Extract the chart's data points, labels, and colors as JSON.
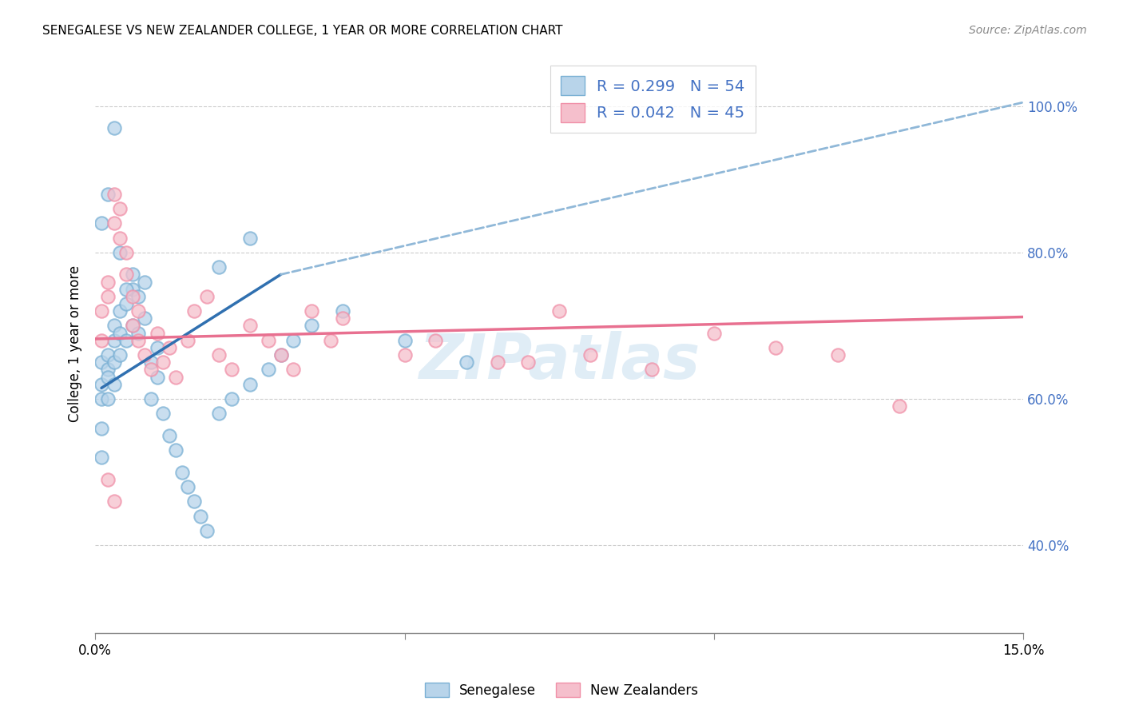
{
  "title": "SENEGALESE VS NEW ZEALANDER COLLEGE, 1 YEAR OR MORE CORRELATION CHART",
  "source": "Source: ZipAtlas.com",
  "ylabel": "College, 1 year or more",
  "right_yticks": [
    0.4,
    0.6,
    0.8,
    1.0
  ],
  "right_yticklabels": [
    "40.0%",
    "60.0%",
    "80.0%",
    "100.0%"
  ],
  "legend_label1": "R = 0.299   N = 54",
  "legend_label2": "R = 0.042   N = 45",
  "blue_fill": "#b8d4ea",
  "blue_edge": "#7ab0d4",
  "pink_fill": "#f5bfcc",
  "pink_edge": "#f090a8",
  "blue_line_color": "#3070b0",
  "blue_dash_color": "#90b8d8",
  "pink_line_color": "#e87090",
  "xlim": [
    0.0,
    0.15
  ],
  "ylim": [
    0.28,
    1.07
  ],
  "watermark": "ZIPatlas",
  "sen_x": [
    0.001,
    0.001,
    0.001,
    0.001,
    0.001,
    0.002,
    0.002,
    0.002,
    0.002,
    0.003,
    0.003,
    0.003,
    0.003,
    0.004,
    0.004,
    0.004,
    0.005,
    0.005,
    0.006,
    0.006,
    0.007,
    0.007,
    0.008,
    0.008,
    0.009,
    0.009,
    0.01,
    0.01,
    0.011,
    0.012,
    0.013,
    0.014,
    0.015,
    0.016,
    0.017,
    0.018,
    0.02,
    0.022,
    0.025,
    0.028,
    0.03,
    0.032,
    0.035,
    0.02,
    0.025,
    0.04,
    0.05,
    0.06,
    0.001,
    0.002,
    0.003,
    0.004,
    0.005,
    0.006
  ],
  "sen_y": [
    0.62,
    0.65,
    0.6,
    0.56,
    0.52,
    0.64,
    0.66,
    0.63,
    0.6,
    0.68,
    0.7,
    0.65,
    0.62,
    0.72,
    0.69,
    0.66,
    0.73,
    0.68,
    0.75,
    0.7,
    0.74,
    0.69,
    0.76,
    0.71,
    0.65,
    0.6,
    0.67,
    0.63,
    0.58,
    0.55,
    0.53,
    0.5,
    0.48,
    0.46,
    0.44,
    0.42,
    0.58,
    0.6,
    0.62,
    0.64,
    0.66,
    0.68,
    0.7,
    0.78,
    0.82,
    0.72,
    0.68,
    0.65,
    0.84,
    0.88,
    0.97,
    0.8,
    0.75,
    0.77
  ],
  "nz_x": [
    0.001,
    0.001,
    0.002,
    0.002,
    0.003,
    0.003,
    0.004,
    0.004,
    0.005,
    0.005,
    0.006,
    0.006,
    0.007,
    0.007,
    0.008,
    0.009,
    0.01,
    0.011,
    0.012,
    0.013,
    0.015,
    0.016,
    0.018,
    0.02,
    0.022,
    0.025,
    0.028,
    0.03,
    0.032,
    0.035,
    0.038,
    0.04,
    0.05,
    0.055,
    0.065,
    0.07,
    0.075,
    0.08,
    0.09,
    0.1,
    0.11,
    0.12,
    0.13,
    0.002,
    0.003
  ],
  "nz_y": [
    0.72,
    0.68,
    0.76,
    0.74,
    0.84,
    0.88,
    0.86,
    0.82,
    0.8,
    0.77,
    0.74,
    0.7,
    0.72,
    0.68,
    0.66,
    0.64,
    0.69,
    0.65,
    0.67,
    0.63,
    0.68,
    0.72,
    0.74,
    0.66,
    0.64,
    0.7,
    0.68,
    0.66,
    0.64,
    0.72,
    0.68,
    0.71,
    0.66,
    0.68,
    0.65,
    0.65,
    0.72,
    0.66,
    0.64,
    0.69,
    0.67,
    0.66,
    0.59,
    0.49,
    0.46
  ]
}
